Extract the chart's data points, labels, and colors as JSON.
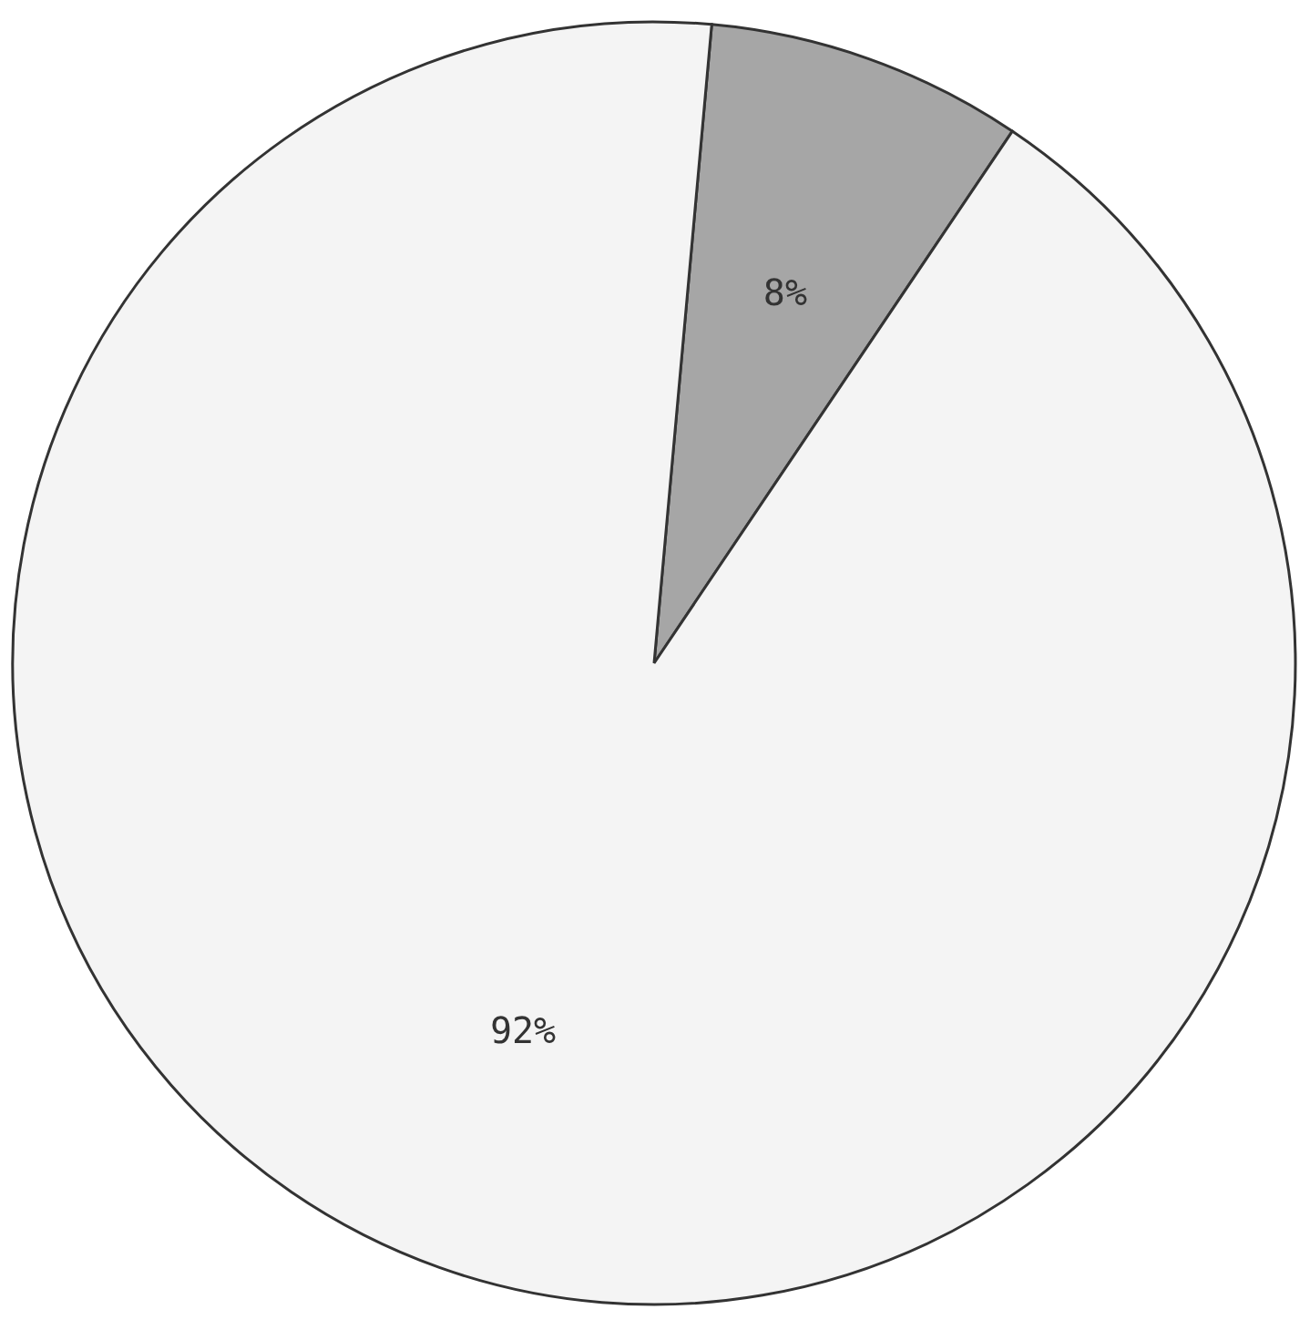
{
  "chart_data": {
    "type": "pie",
    "categories": [
      null,
      null
    ],
    "values": [
      8,
      92
    ],
    "colors": [
      "#a6a6a6",
      "#f4f4f4"
    ],
    "value_labels": [
      "8%",
      "92%"
    ],
    "legend": false
  }
}
